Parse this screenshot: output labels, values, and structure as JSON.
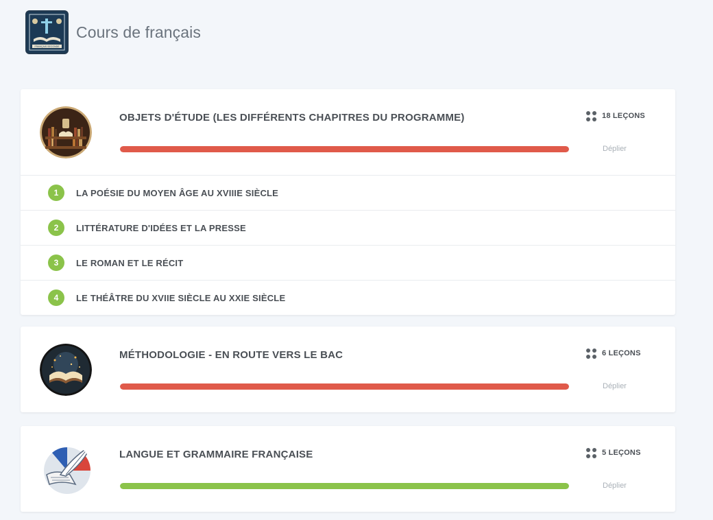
{
  "header": {
    "title": "Cours de français",
    "logo_text": "FRANÇAIS SECONDE"
  },
  "colors": {
    "progress_red": "#e05a4a",
    "progress_green": "#8bc34a",
    "chapter_badge": "#8bc34a"
  },
  "modules": [
    {
      "title": "OBJETS D'ÉTUDE (LES DIFFÉRENTS CHAPITRES DU PROGRAMME)",
      "lessons": "18 LEÇONS",
      "expand_label": "Déplier",
      "progress": 1.0,
      "progress_color": "#e05a4a",
      "thumbnail": "library-books-icon",
      "chapters": [
        {
          "number": "1",
          "label": "LA POÉSIE DU MOYEN ÂGE AU XVIIIE SIÈCLE"
        },
        {
          "number": "2",
          "label": "LITTÉRATURE D'IDÉES ET LA PRESSE"
        },
        {
          "number": "3",
          "label": "LE ROMAN ET LE RÉCIT"
        },
        {
          "number": "4",
          "label": "LE THÉÂTRE DU XVIIE SIÈCLE AU XXIE SIÈCLE"
        }
      ]
    },
    {
      "title": "MÉTHODOLOGIE - EN ROUTE VERS LE BAC",
      "lessons": "6 LEÇONS",
      "expand_label": "Déplier",
      "progress": 1.0,
      "progress_color": "#e05a4a",
      "thumbnail": "open-book-icon"
    },
    {
      "title": "LANGUE ET GRAMMAIRE FRANÇAISE",
      "lessons": "5 LEÇONS",
      "expand_label": "Déplier",
      "progress": 1.0,
      "progress_color": "#8bc34a",
      "thumbnail": "quill-scroll-icon"
    }
  ]
}
